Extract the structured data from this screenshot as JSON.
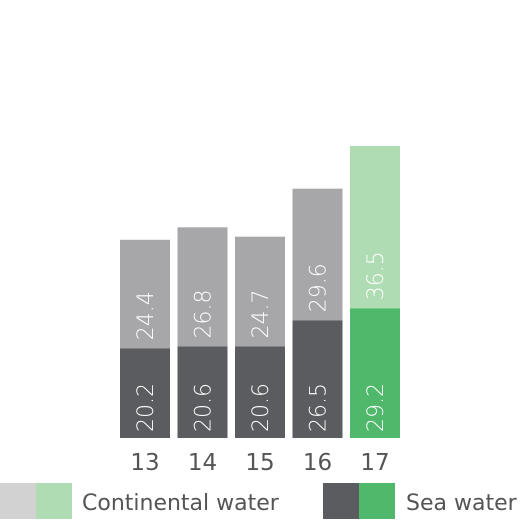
{
  "chart_data": {
    "type": "bar",
    "stacked": true,
    "categories": [
      "13",
      "14",
      "15",
      "16",
      "17"
    ],
    "series": [
      {
        "name": "Sea water",
        "values": [
          20.2,
          20.6,
          20.6,
          26.5,
          29.2
        ]
      },
      {
        "name": "Continental water",
        "values": [
          24.4,
          26.8,
          24.7,
          29.6,
          36.5
        ]
      }
    ],
    "title": "",
    "xlabel": "",
    "ylabel": "",
    "ylim": [
      0,
      65.7
    ],
    "grid": false,
    "legend_position": "bottom",
    "highlight_category": "17",
    "colors": {
      "sea_water": "#5b5c60",
      "continental_water": "#a7a7a9",
      "sea_water_highlight": "#4fb86a",
      "continental_water_highlight": "#afdcb2",
      "tick_text": "#555555",
      "bar_text": "#ffffff"
    }
  },
  "legend": {
    "continental_label": "Continental water",
    "sea_label": "Sea water"
  }
}
